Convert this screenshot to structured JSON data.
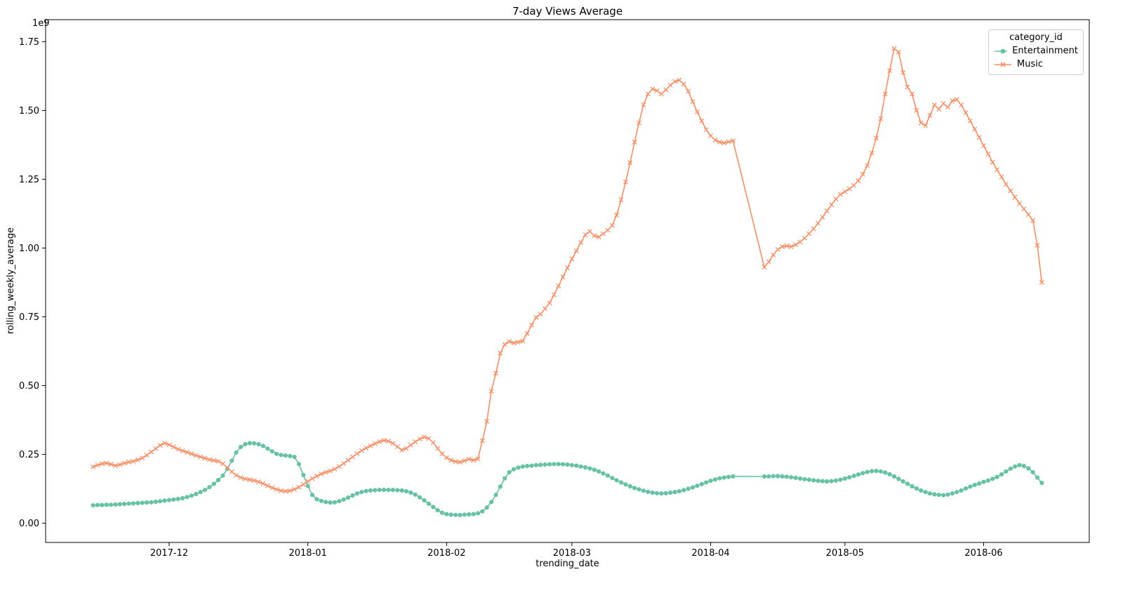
{
  "chart_data": {
    "type": "line",
    "title": "7-day Views Average",
    "xlabel": "trending_date",
    "ylabel": "rolling_weekly_average",
    "y_offset_text": "1e9",
    "y_unit": 1000000000,
    "grid": false,
    "background_color": "#ffffff",
    "spine_color": "#000000",
    "ylim": [
      -0.07,
      1.83
    ],
    "x_start_date": "2017-11-14",
    "x_end_date": "2018-06-14",
    "xlim_margin_days": 10.6,
    "x_ticks": [
      {
        "label": "2017-12",
        "day": 17
      },
      {
        "label": "2018-01",
        "day": 48
      },
      {
        "label": "2018-02",
        "day": 79
      },
      {
        "label": "2018-03",
        "day": 107
      },
      {
        "label": "2018-04",
        "day": 138
      },
      {
        "label": "2018-05",
        "day": 168
      },
      {
        "label": "2018-06",
        "day": 199
      }
    ],
    "y_ticks": [
      {
        "label": "0.00",
        "value": 0.0
      },
      {
        "label": "0.25",
        "value": 0.25
      },
      {
        "label": "0.50",
        "value": 0.5
      },
      {
        "label": "0.75",
        "value": 0.75
      },
      {
        "label": "1.00",
        "value": 1.0
      },
      {
        "label": "1.25",
        "value": 1.25
      },
      {
        "label": "1.50",
        "value": 1.5
      },
      {
        "label": "1.75",
        "value": 1.75
      }
    ],
    "legend": {
      "title": "category_id",
      "location": "upper right",
      "entries": [
        "Entertainment",
        "Music"
      ]
    },
    "series": [
      {
        "name": "Entertainment",
        "color": "#66c2a5",
        "marker": "circle",
        "values_unit": "1e9 views",
        "values": [
          0.065,
          0.066,
          0.066,
          0.067,
          0.067,
          0.068,
          0.069,
          0.07,
          0.071,
          0.072,
          0.073,
          0.074,
          0.075,
          0.076,
          0.078,
          0.08,
          0.082,
          0.084,
          0.086,
          0.088,
          0.091,
          0.095,
          0.1,
          0.106,
          0.113,
          0.121,
          0.131,
          0.143,
          0.157,
          0.173,
          0.197,
          0.227,
          0.257,
          0.277,
          0.287,
          0.291,
          0.29,
          0.287,
          0.281,
          0.271,
          0.261,
          0.252,
          0.248,
          0.246,
          0.244,
          0.241,
          0.215,
          0.175,
          0.135,
          0.103,
          0.087,
          0.081,
          0.077,
          0.075,
          0.076,
          0.08,
          0.086,
          0.093,
          0.101,
          0.108,
          0.113,
          0.117,
          0.119,
          0.12,
          0.121,
          0.121,
          0.121,
          0.121,
          0.12,
          0.119,
          0.116,
          0.111,
          0.104,
          0.094,
          0.083,
          0.071,
          0.059,
          0.047,
          0.038,
          0.033,
          0.031,
          0.03,
          0.03,
          0.031,
          0.032,
          0.033,
          0.036,
          0.043,
          0.057,
          0.077,
          0.103,
          0.133,
          0.163,
          0.185,
          0.196,
          0.202,
          0.206,
          0.208,
          0.209,
          0.211,
          0.212,
          0.213,
          0.214,
          0.215,
          0.215,
          0.214,
          0.213,
          0.211,
          0.209,
          0.206,
          0.203,
          0.199,
          0.194,
          0.188,
          0.181,
          0.173,
          0.164,
          0.156,
          0.148,
          0.141,
          0.134,
          0.128,
          0.123,
          0.118,
          0.114,
          0.111,
          0.109,
          0.108,
          0.109,
          0.111,
          0.113,
          0.116,
          0.12,
          0.125,
          0.13,
          0.136,
          0.142,
          0.148,
          0.154,
          0.159,
          0.163,
          0.166,
          0.168,
          0.17,
          null,
          null,
          null,
          null,
          null,
          null,
          0.17,
          0.17,
          0.171,
          0.171,
          0.17,
          0.169,
          0.167,
          0.165,
          0.162,
          0.16,
          0.158,
          0.156,
          0.154,
          0.153,
          0.152,
          0.153,
          0.155,
          0.158,
          0.162,
          0.167,
          0.172,
          0.177,
          0.182,
          0.186,
          0.189,
          0.19,
          0.188,
          0.184,
          0.178,
          0.17,
          0.161,
          0.152,
          0.143,
          0.134,
          0.126,
          0.119,
          0.113,
          0.108,
          0.105,
          0.103,
          0.102,
          0.104,
          0.108,
          0.113,
          0.119,
          0.126,
          0.133,
          0.139,
          0.144,
          0.15,
          0.155,
          0.161,
          0.168,
          0.177,
          0.188,
          0.198,
          0.206,
          0.211,
          0.208,
          0.199,
          0.185,
          0.166,
          0.146
        ]
      },
      {
        "name": "Music",
        "color": "#fc8d62",
        "marker": "x",
        "values_unit": "1e9 views",
        "values": [
          0.205,
          0.211,
          0.216,
          0.218,
          0.214,
          0.209,
          0.213,
          0.218,
          0.222,
          0.225,
          0.23,
          0.237,
          0.247,
          0.259,
          0.271,
          0.283,
          0.291,
          0.285,
          0.277,
          0.269,
          0.263,
          0.258,
          0.252,
          0.246,
          0.241,
          0.236,
          0.231,
          0.228,
          0.225,
          0.216,
          0.202,
          0.187,
          0.174,
          0.166,
          0.161,
          0.158,
          0.155,
          0.15,
          0.144,
          0.136,
          0.129,
          0.123,
          0.118,
          0.116,
          0.118,
          0.123,
          0.131,
          0.141,
          0.152,
          0.162,
          0.171,
          0.179,
          0.185,
          0.19,
          0.197,
          0.206,
          0.217,
          0.229,
          0.241,
          0.253,
          0.264,
          0.273,
          0.281,
          0.289,
          0.296,
          0.301,
          0.298,
          0.29,
          0.278,
          0.266,
          0.272,
          0.284,
          0.296,
          0.306,
          0.313,
          0.308,
          0.293,
          0.272,
          0.252,
          0.238,
          0.229,
          0.224,
          0.222,
          0.227,
          0.233,
          0.229,
          0.234,
          0.3,
          0.37,
          0.48,
          0.545,
          0.618,
          0.65,
          0.66,
          0.655,
          0.658,
          0.662,
          0.69,
          0.72,
          0.748,
          0.76,
          0.78,
          0.8,
          0.83,
          0.862,
          0.895,
          0.928,
          0.96,
          0.99,
          1.02,
          1.048,
          1.06,
          1.045,
          1.04,
          1.052,
          1.065,
          1.082,
          1.12,
          1.175,
          1.24,
          1.31,
          1.385,
          1.455,
          1.52,
          1.56,
          1.578,
          1.572,
          1.56,
          1.575,
          1.592,
          1.605,
          1.61,
          1.596,
          1.57,
          1.532,
          1.495,
          1.462,
          1.43,
          1.408,
          1.392,
          1.385,
          1.382,
          1.386,
          1.39,
          null,
          null,
          null,
          null,
          null,
          null,
          0.93,
          0.95,
          0.975,
          0.995,
          1.005,
          1.008,
          1.005,
          1.012,
          1.022,
          1.036,
          1.052,
          1.07,
          1.09,
          1.112,
          1.135,
          1.158,
          1.178,
          1.195,
          1.205,
          1.215,
          1.228,
          1.245,
          1.268,
          1.3,
          1.345,
          1.4,
          1.47,
          1.56,
          1.645,
          1.725,
          1.712,
          1.638,
          1.585,
          1.56,
          1.5,
          1.455,
          1.445,
          1.482,
          1.52,
          1.505,
          1.525,
          1.512,
          1.535,
          1.54,
          1.52,
          1.492,
          1.462,
          1.432,
          1.402,
          1.372,
          1.342,
          1.312,
          1.285,
          1.258,
          1.232,
          1.208,
          1.185,
          1.162,
          1.142,
          1.122,
          1.1,
          1.01,
          0.875
        ]
      }
    ]
  }
}
